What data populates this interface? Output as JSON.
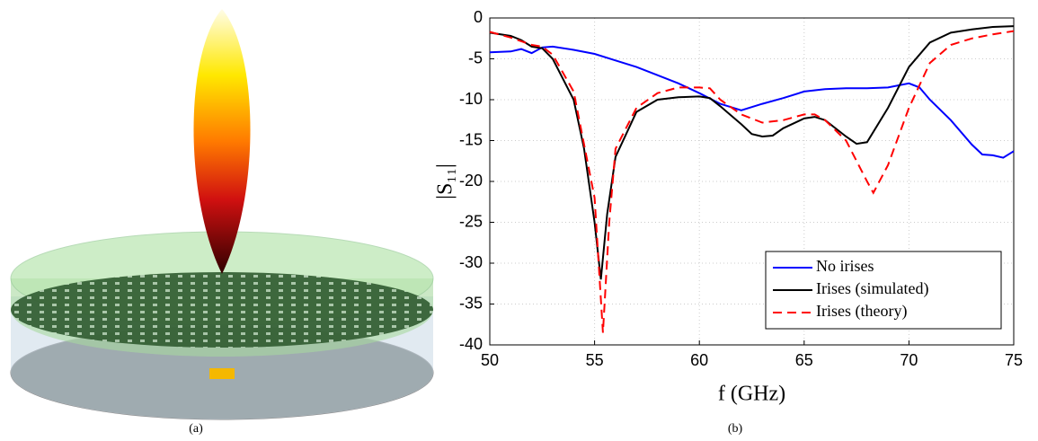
{
  "chart_data": {
    "type": "line",
    "xlabel": "f (GHz)",
    "ylabel": "|S₁₁|",
    "xlim": [
      50,
      75
    ],
    "ylim": [
      -40,
      0
    ],
    "xticks": [
      50,
      55,
      60,
      65,
      70,
      75
    ],
    "yticks": [
      -40,
      -35,
      -30,
      -25,
      -20,
      -15,
      -10,
      -5,
      0
    ],
    "grid": true,
    "legend": "lower right",
    "series": [
      {
        "name": "No irises",
        "color": "#0000ff",
        "dash": "solid",
        "x": [
          50,
          51,
          51.5,
          52,
          52.5,
          53,
          54,
          55,
          56,
          57,
          58,
          59,
          60,
          61,
          62,
          63,
          64,
          65,
          66,
          67,
          68,
          69,
          70,
          70.5,
          71,
          72,
          73,
          73.5,
          74,
          74.5,
          75
        ],
        "values": [
          -4.2,
          -4.1,
          -3.8,
          -4.3,
          -3.6,
          -3.5,
          -3.9,
          -4.4,
          -5.2,
          -6.0,
          -7.0,
          -8.0,
          -9.2,
          -10.5,
          -11.3,
          -10.5,
          -9.8,
          -9.0,
          -8.7,
          -8.6,
          -8.6,
          -8.5,
          -8.0,
          -8.5,
          -10,
          -12.5,
          -15.5,
          -16.7,
          -16.8,
          -17.1,
          -16.3
        ]
      },
      {
        "name": "Irises (simulated)",
        "color": "#000000",
        "dash": "solid",
        "x": [
          50,
          51,
          51.5,
          52,
          52.5,
          53,
          54,
          54.5,
          55,
          55.3,
          55.6,
          56,
          57,
          58,
          59,
          60,
          60.5,
          61,
          62,
          62.5,
          63,
          63.5,
          64,
          65,
          65.5,
          66,
          67,
          67.5,
          68,
          69,
          70,
          71,
          72,
          73,
          74,
          75
        ],
        "values": [
          -1.8,
          -2.2,
          -2.7,
          -3.5,
          -3.7,
          -5,
          -10,
          -16,
          -25,
          -32,
          -24,
          -17,
          -11.5,
          -10,
          -9.7,
          -9.6,
          -9.8,
          -10.8,
          -13,
          -14.2,
          -14.5,
          -14.4,
          -13.5,
          -12.3,
          -12.1,
          -12.5,
          -14.5,
          -15.4,
          -15.2,
          -11,
          -6,
          -3,
          -1.8,
          -1.4,
          -1.1,
          -1.0
        ]
      },
      {
        "name": "Irises (theory)",
        "color": "#ff0000",
        "dash": "dashed",
        "x": [
          50,
          51,
          52,
          52.5,
          53,
          54,
          55,
          55.4,
          55.7,
          56,
          57,
          58,
          59,
          60,
          60.5,
          61,
          62,
          63,
          64,
          65,
          65.5,
          66,
          67,
          68,
          68.3,
          69,
          70,
          71,
          72,
          73,
          74,
          75
        ],
        "values": [
          -1.7,
          -2.4,
          -3.3,
          -3.5,
          -4.5,
          -9,
          -22,
          -38.5,
          -25,
          -16,
          -11,
          -9.2,
          -8.5,
          -8.5,
          -8.6,
          -10,
          -11.8,
          -12.8,
          -12.5,
          -11.8,
          -11.8,
          -12.5,
          -15,
          -20,
          -21.4,
          -18,
          -11,
          -5.5,
          -3.3,
          -2.5,
          -2,
          -1.6
        ]
      }
    ]
  },
  "captions": [
    "(a)",
    "(b)"
  ]
}
